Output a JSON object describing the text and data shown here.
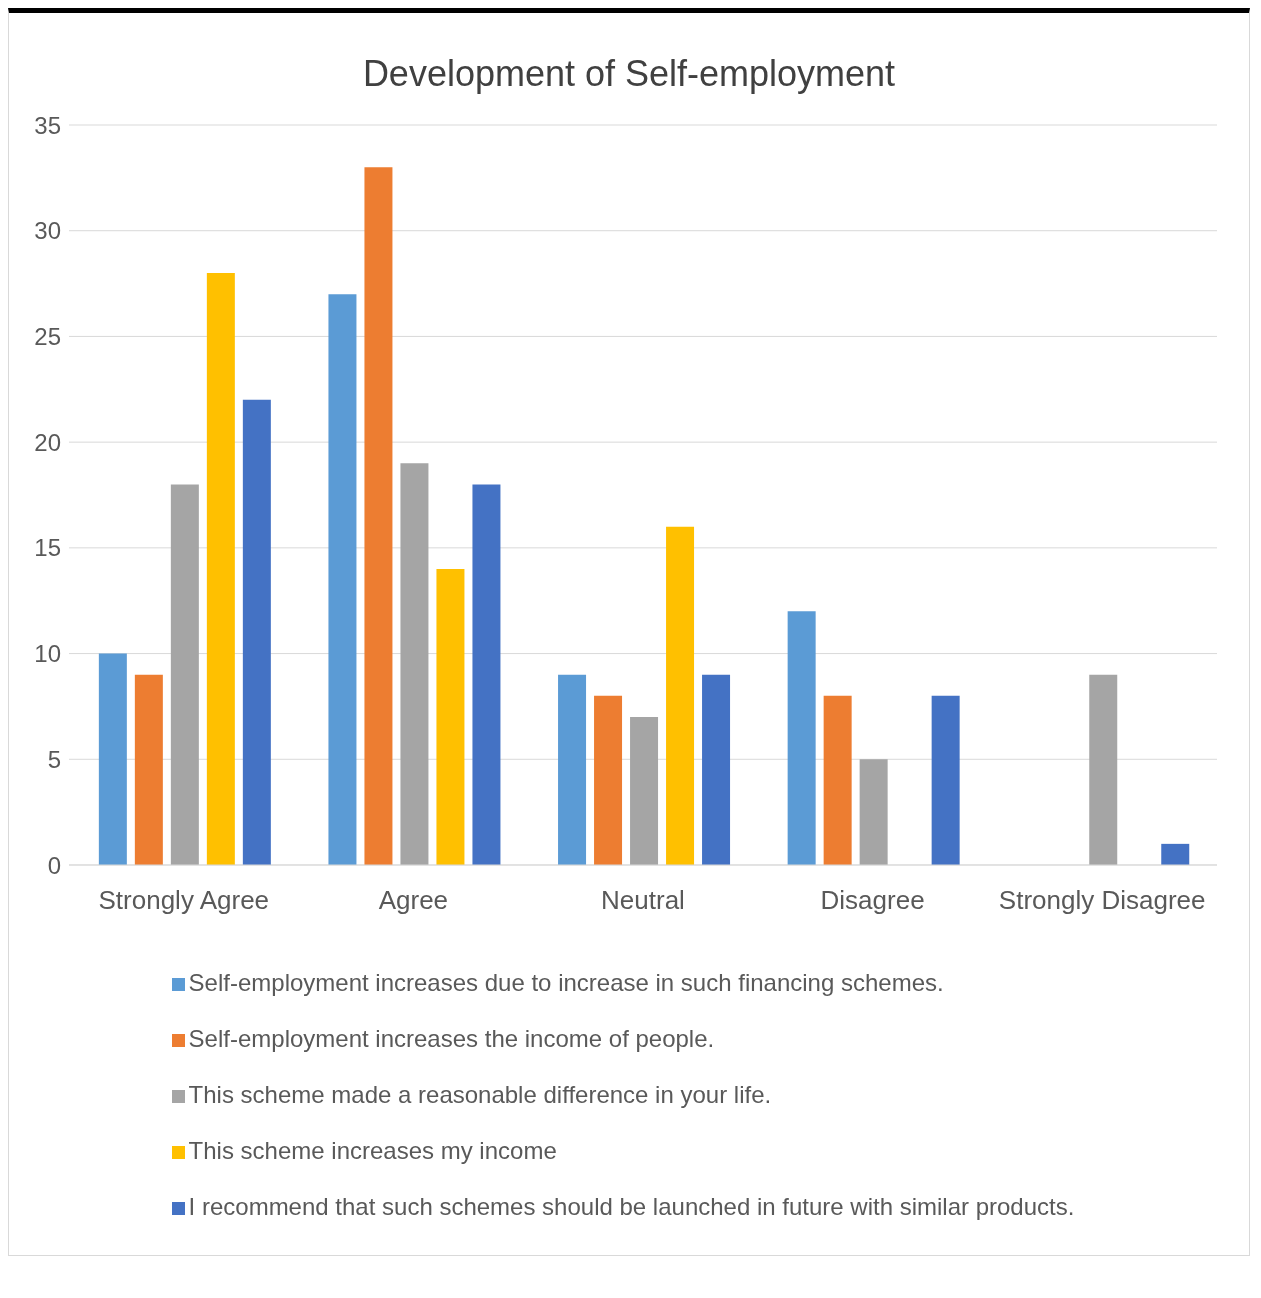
{
  "chart_data": {
    "type": "bar",
    "title": "Development of Self-employment",
    "categories": [
      "Strongly Agree",
      "Agree",
      "Neutral",
      "Disagree",
      "Strongly Disagree"
    ],
    "series": [
      {
        "name": "Self-employment increases due to increase in such financing schemes.",
        "color": "#5b9bd5",
        "values": [
          10,
          27,
          9,
          12,
          0
        ]
      },
      {
        "name": "Self-employment increases the income of people.",
        "color": "#ed7d31",
        "values": [
          9,
          33,
          8,
          8,
          0
        ]
      },
      {
        "name": "This scheme made a reasonable difference in your life.",
        "color": "#a5a5a5",
        "values": [
          18,
          19,
          7,
          5,
          9
        ]
      },
      {
        "name": "This scheme increases my income",
        "color": "#ffc000",
        "values": [
          28,
          14,
          16,
          0,
          0
        ]
      },
      {
        "name": "I recommend that such schemes should be launched in future with similar products.",
        "color": "#4472c4",
        "values": [
          22,
          18,
          9,
          8,
          1
        ]
      }
    ],
    "ylim": [
      0,
      35
    ],
    "yticks": [
      0,
      5,
      10,
      15,
      20,
      25,
      30,
      35
    ],
    "grid": "y",
    "legend": "bottom"
  }
}
